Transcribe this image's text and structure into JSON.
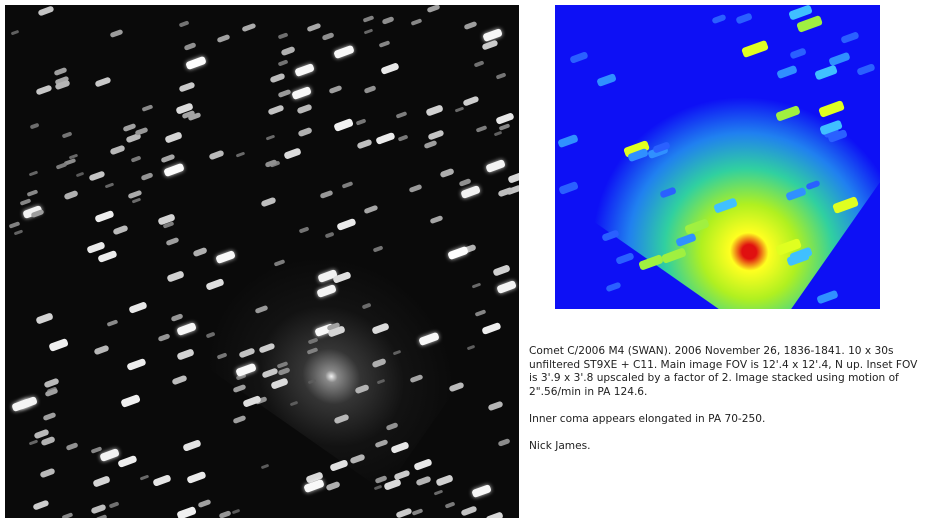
{
  "caption": {
    "paragraph1": "Comet C/2006 M4 (SWAN). 2006 November 26, 1836-1841. 10 x 30s unfiltered ST9XE + C11. Main image FOV is 12'.4 x 12'.4, N up. Inset FOV is 3'.9 x 3'.8 upscaled by a factor of 2. Image stacked using motion of 2\".56/min in PA 124.6.",
    "paragraph2": "Inner coma appears elongated in PA 70-250.",
    "signature": "Nick James."
  },
  "colors": {
    "main_background": "#0a0a0a",
    "inset_background": "#0d10f5"
  }
}
